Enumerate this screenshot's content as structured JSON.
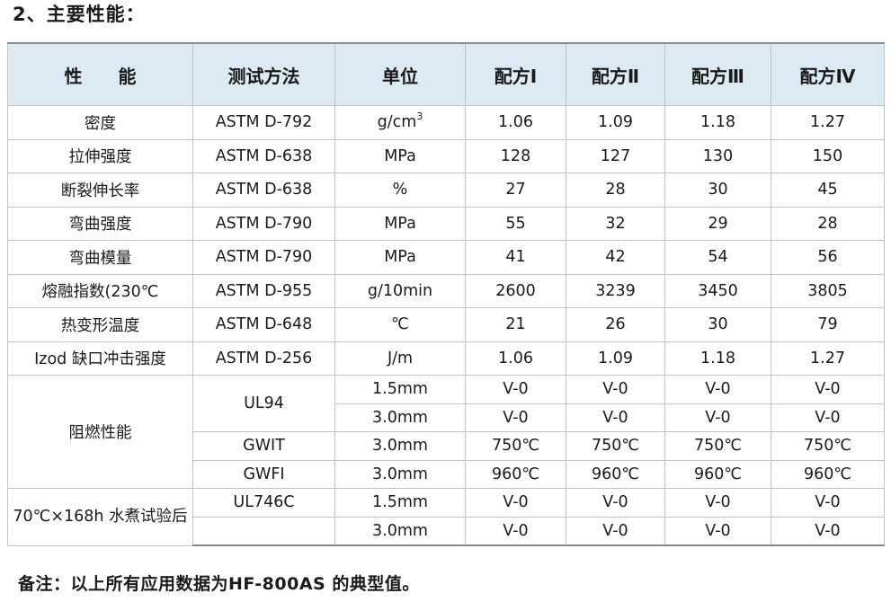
{
  "heading": "2、主要性能：",
  "headers": [
    "性　　能",
    "测试方法",
    "单位",
    "配方Ⅰ",
    "配方Ⅱ",
    "配方Ⅲ",
    "配方Ⅳ"
  ],
  "rows": [
    {
      "property": "密度",
      "method": "ASTM D-792",
      "unit": "g/cm",
      "unit_sup": "3",
      "values": [
        "1.06",
        "1.09",
        "1.18",
        "1.27"
      ]
    },
    {
      "property": "拉伸强度",
      "method": "ASTM D-638",
      "unit": "MPa",
      "values": [
        "128",
        "127",
        "130",
        "150"
      ]
    },
    {
      "property": "断裂伸长率",
      "method": "ASTM D-638",
      "unit": "%",
      "values": [
        "27",
        "28",
        "30",
        "45"
      ]
    },
    {
      "property": "弯曲强度",
      "method": "ASTM D-790",
      "unit": "MPa",
      "values": [
        "55",
        "32",
        "29",
        "28"
      ]
    },
    {
      "property": "弯曲模量",
      "method": "ASTM D-790",
      "unit": "MPa",
      "values": [
        "41",
        "42",
        "54",
        "56"
      ]
    },
    {
      "property": "熔融指数(230℃",
      "method": "ASTM D-955",
      "unit": "g/10min",
      "values": [
        "2600",
        "3239",
        "3450",
        "3805"
      ]
    },
    {
      "property": "热变形温度",
      "method": "ASTM D-648",
      "unit": "℃",
      "values": [
        "21",
        "26",
        "30",
        "79"
      ]
    },
    {
      "property": "Izod 缺口冲击强度",
      "method": "ASTM D-256",
      "unit": "J/m",
      "values": [
        "1.06",
        "1.09",
        "1.18",
        "1.27"
      ]
    }
  ],
  "flame": {
    "property": "阻燃性能",
    "ul94_method": "UL94",
    "ul94_rows": [
      {
        "unit": "1.5mm",
        "values": [
          "V-0",
          "V-0",
          "V-0",
          "V-0"
        ]
      },
      {
        "unit": "3.0mm",
        "values": [
          "V-0",
          "V-0",
          "V-0",
          "V-0"
        ]
      }
    ],
    "gwit": {
      "method": "GWIT",
      "unit": "3.0mm",
      "values": [
        "750℃",
        "750℃",
        "750℃",
        "750℃"
      ]
    },
    "gwfi": {
      "method": "GWFI",
      "unit": "3.0mm",
      "values": [
        "960℃",
        "960℃",
        "960℃",
        "960℃"
      ]
    }
  },
  "water": {
    "property": "70℃×168h 水煮试验后",
    "method": "UL746C",
    "rows": [
      {
        "unit": "1.5mm",
        "values": [
          "V-0",
          "V-0",
          "V-0",
          "V-0"
        ]
      },
      {
        "unit": "3.0mm",
        "values": [
          "V-0",
          "V-0",
          "V-0",
          "V-0"
        ]
      }
    ]
  },
  "note": "备注：以上所有应用数据为HF-800AS 的典型值。"
}
